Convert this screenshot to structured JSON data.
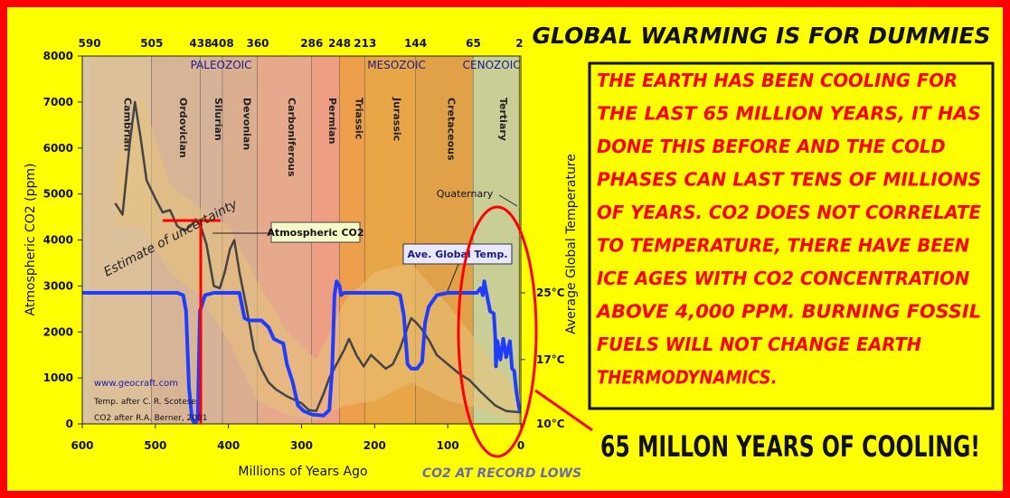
{
  "poster": {
    "title": "GLOBAL WARMING IS FOR DUMMIES",
    "box_lines": [
      "THE EARTH HAS BEEN COOLING FOR",
      "THE LAST 65 MILLION YEARS, IT HAS",
      "DONE THIS BEFORE AND THE COLD",
      "PHASES CAN LAST TENS OF MILLIONS",
      "OF YEARS.  CO2 DOES NOT CORRELATE",
      "TO TEMPERATURE, THERE HAVE BEEN",
      "ICE AGES WITH CO2 CONCENTRATION",
      "ABOVE 4,000 PPM.  BURNING FOSSIL",
      "FUELS WILL NOT CHANGE EARTH",
      "THERMODYNAMICS."
    ],
    "headline": "65 MILLON YEARS OF COOLING!",
    "record_lows": "CO2 AT RECORD LOWS",
    "colors": {
      "background": "#ffff00",
      "border": "#ff0000",
      "text": "#ff0000",
      "headline": "#000000"
    }
  },
  "chart_data": {
    "type": "line",
    "xlabel": "Millions of Years Ago",
    "ylabel": "Atmospheric CO2 (ppm)",
    "y2label": "Average Global Temperature",
    "xlim": [
      600,
      0
    ],
    "ylim": [
      0,
      8000
    ],
    "x_ticks": [
      "600",
      "500",
      "400",
      "300",
      "200",
      "100",
      "0"
    ],
    "y_ticks": [
      "0",
      "1000",
      "2000",
      "3000",
      "4000",
      "5000",
      "6000",
      "7000",
      "8000"
    ],
    "y2_ticks": [
      {
        "label": "25°C",
        "ppm": 2850
      },
      {
        "label": "17°C",
        "ppm": 1400
      },
      {
        "label": "10°C",
        "ppm": 0
      }
    ],
    "top_ticks": [
      {
        "label": "590",
        "ma": 590
      },
      {
        "label": "505",
        "ma": 505
      },
      {
        "label": "438",
        "ma": 438
      },
      {
        "label": "408",
        "ma": 408
      },
      {
        "label": "360",
        "ma": 360
      },
      {
        "label": "286",
        "ma": 286
      },
      {
        "label": "248",
        "ma": 248
      },
      {
        "label": "213",
        "ma": 213
      },
      {
        "label": "144",
        "ma": 144
      },
      {
        "label": "65",
        "ma": 65
      },
      {
        "label": "2",
        "ma": 2
      }
    ],
    "eras": [
      {
        "label": "PALEOZOIC",
        "ma": 410
      },
      {
        "label": "MESOZOIC",
        "ma": 170
      },
      {
        "label": "CENOZOIC",
        "ma": 40
      }
    ],
    "periods": [
      {
        "name": "Cambrian",
        "start": 590,
        "end": 505,
        "color": "#dcc09a"
      },
      {
        "name": "Ordovician",
        "start": 505,
        "end": 438,
        "color": "#d8b497"
      },
      {
        "name": "Silurian",
        "start": 438,
        "end": 408,
        "color": "#d6b299"
      },
      {
        "name": "Devonian",
        "start": 408,
        "end": 360,
        "color": "#dcae90"
      },
      {
        "name": "Carboniferous",
        "start": 360,
        "end": 286,
        "color": "#e7a98c"
      },
      {
        "name": "Permian",
        "start": 286,
        "end": 248,
        "color": "#ee9e83"
      },
      {
        "name": "Triassic",
        "start": 248,
        "end": 213,
        "color": "#ee9f4c"
      },
      {
        "name": "Jurassic",
        "start": 213,
        "end": 144,
        "color": "#e9a647"
      },
      {
        "name": "Cretaceous",
        "start": 144,
        "end": 65,
        "color": "#e0a149"
      },
      {
        "name": "Tertiary",
        "start": 65,
        "end": 2,
        "color": "#c8ce96"
      }
    ],
    "series": [
      {
        "name": "Atmospheric CO2",
        "color": "#444444",
        "points": [
          [
            555,
            4800
          ],
          [
            545,
            4550
          ],
          [
            535,
            6100
          ],
          [
            528,
            7000
          ],
          [
            520,
            6200
          ],
          [
            512,
            5300
          ],
          [
            500,
            4900
          ],
          [
            490,
            4600
          ],
          [
            480,
            4650
          ],
          [
            470,
            4300
          ],
          [
            460,
            4200
          ],
          [
            452,
            4300
          ],
          [
            445,
            4450
          ],
          [
            438,
            4300
          ],
          [
            430,
            3900
          ],
          [
            420,
            3000
          ],
          [
            412,
            2950
          ],
          [
            405,
            3300
          ],
          [
            398,
            3800
          ],
          [
            392,
            4000
          ],
          [
            385,
            3300
          ],
          [
            375,
            2500
          ],
          [
            365,
            1600
          ],
          [
            355,
            1200
          ],
          [
            345,
            900
          ],
          [
            335,
            750
          ],
          [
            320,
            600
          ],
          [
            300,
            450
          ],
          [
            290,
            300
          ],
          [
            280,
            280
          ],
          [
            270,
            650
          ],
          [
            262,
            1000
          ],
          [
            252,
            1300
          ],
          [
            242,
            1600
          ],
          [
            235,
            1850
          ],
          [
            225,
            1500
          ],
          [
            215,
            1250
          ],
          [
            205,
            1500
          ],
          [
            195,
            1350
          ],
          [
            185,
            1200
          ],
          [
            175,
            1300
          ],
          [
            165,
            1650
          ],
          [
            155,
            2100
          ],
          [
            150,
            2300
          ],
          [
            143,
            2200
          ],
          [
            135,
            2050
          ],
          [
            125,
            1800
          ],
          [
            115,
            1500
          ],
          [
            100,
            1300
          ],
          [
            85,
            1100
          ],
          [
            70,
            950
          ],
          [
            55,
            700
          ],
          [
            45,
            550
          ],
          [
            35,
            400
          ],
          [
            20,
            280
          ],
          [
            0,
            250
          ]
        ]
      },
      {
        "name": "Ave. Global Temp.",
        "color": "#1f3cff",
        "points": [
          [
            600,
            2850
          ],
          [
            470,
            2850
          ],
          [
            462,
            2800
          ],
          [
            458,
            2450
          ],
          [
            454,
            800
          ],
          [
            450,
            120
          ],
          [
            446,
            0
          ],
          [
            442,
            100
          ],
          [
            439,
            2450
          ],
          [
            432,
            2800
          ],
          [
            420,
            2850
          ],
          [
            385,
            2850
          ],
          [
            378,
            2300
          ],
          [
            372,
            2250
          ],
          [
            355,
            2250
          ],
          [
            345,
            2100
          ],
          [
            338,
            1850
          ],
          [
            332,
            1800
          ],
          [
            325,
            1750
          ],
          [
            320,
            1300
          ],
          [
            312,
            900
          ],
          [
            305,
            400
          ],
          [
            297,
            280
          ],
          [
            285,
            200
          ],
          [
            270,
            180
          ],
          [
            262,
            300
          ],
          [
            258,
            1200
          ],
          [
            255,
            2800
          ],
          [
            252,
            3100
          ],
          [
            248,
            3000
          ],
          [
            246,
            2800
          ],
          [
            242,
            2850
          ],
          [
            200,
            2850
          ],
          [
            175,
            2850
          ],
          [
            165,
            2800
          ],
          [
            160,
            2350
          ],
          [
            155,
            1300
          ],
          [
            150,
            1200
          ],
          [
            142,
            1200
          ],
          [
            135,
            1350
          ],
          [
            131,
            2200
          ],
          [
            126,
            2550
          ],
          [
            115,
            2800
          ],
          [
            100,
            2850
          ],
          [
            60,
            2850
          ],
          [
            55,
            2950
          ],
          [
            52,
            2800
          ],
          [
            50,
            3100
          ],
          [
            47,
            2850
          ],
          [
            42,
            2450
          ],
          [
            37,
            2400
          ],
          [
            35,
            1900
          ],
          [
            34,
            1250
          ],
          [
            32,
            1800
          ],
          [
            28,
            1400
          ],
          [
            24,
            1850
          ],
          [
            20,
            1450
          ],
          [
            15,
            1800
          ],
          [
            12,
            1200
          ],
          [
            9,
            1150
          ],
          [
            6,
            700
          ],
          [
            3,
            400
          ],
          [
            1,
            250
          ]
        ]
      }
    ],
    "co2_label": "Atmospheric CO2",
    "temp_label": "Ave. Global Temp.",
    "quaternary_label": "Quaternary",
    "uncertainty_label": "Estimate of uncertainty",
    "credits": [
      "www.geocraft.com",
      "Temp. after C. R. Scotese",
      "CO2 after R.A. Berner, 2001"
    ]
  }
}
